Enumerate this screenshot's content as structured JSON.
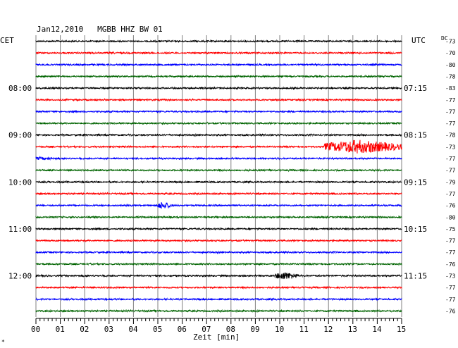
{
  "header": {
    "title": "Jan12,2010   MGBB HHZ BW 01"
  },
  "left_label": "CET",
  "right_label": "UTC",
  "dc_label": "DC",
  "colors": {
    "black": "#000000",
    "red": "#ff0000",
    "blue": "#0000ff",
    "green": "#006400",
    "grid": "#808080"
  },
  "chart_data": {
    "type": "line",
    "title": "Jan12,2010   MGBB HHZ BW 01",
    "xlabel": "Zeit [min]",
    "ylabel": "",
    "xlim": [
      0,
      15
    ],
    "x_ticks": [
      "00",
      "01",
      "02",
      "03",
      "04",
      "05",
      "06",
      "07",
      "08",
      "09",
      "10",
      "11",
      "12",
      "13",
      "14",
      "15"
    ],
    "cet_labels": [
      {
        "row": 4,
        "label": "08:00"
      },
      {
        "row": 8,
        "label": "09:00"
      },
      {
        "row": 12,
        "label": "10:00"
      },
      {
        "row": 16,
        "label": "11:00"
      },
      {
        "row": 20,
        "label": "12:00"
      }
    ],
    "utc_labels": [
      {
        "row": 0,
        "label": "UTC"
      },
      {
        "row": 4,
        "label": "07:15"
      },
      {
        "row": 8,
        "label": "08:15"
      },
      {
        "row": 12,
        "label": "09:15"
      },
      {
        "row": 16,
        "label": "10:15"
      },
      {
        "row": 20,
        "label": "11:15"
      }
    ],
    "dc_values": [
      "-73",
      "-70",
      "-80",
      "-78",
      "-83",
      "-77",
      "-77",
      "-77",
      "-78",
      "-73",
      "-77",
      "-77",
      "-79",
      "-77",
      "-76",
      "-80",
      "-75",
      "-77",
      "-77",
      "-76",
      "-73",
      "-77",
      "-77",
      "-76"
    ],
    "trace_colors": [
      "black",
      "red",
      "blue",
      "green"
    ],
    "traces_count": 24,
    "events": [
      {
        "row": 9,
        "start_min": 11.8,
        "end_min": 15.0,
        "peak_min": 13.2,
        "amplitude": "large"
      },
      {
        "row": 10,
        "start_min": 0.0,
        "end_min": 0.9,
        "peak_min": 0.1,
        "amplitude": "small"
      },
      {
        "row": 14,
        "start_min": 5.0,
        "end_min": 5.6,
        "peak_min": 5.2,
        "amplitude": "medium"
      },
      {
        "row": 20,
        "start_min": 9.8,
        "end_min": 10.8,
        "peak_min": 10.1,
        "amplitude": "medium"
      }
    ]
  }
}
